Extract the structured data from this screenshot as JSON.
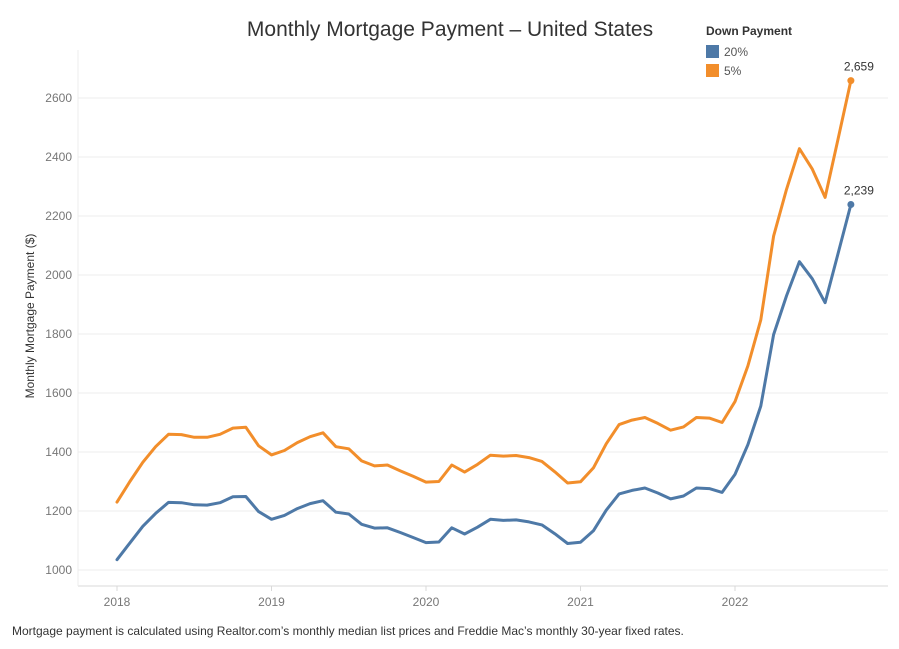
{
  "chart_data": {
    "type": "line",
    "title": "Monthly Mortgage Payment – United States",
    "xlabel": "",
    "ylabel": "Monthly Mortgage Payment ($)",
    "ylim": [
      960,
      2720
    ],
    "yticks": [
      1000,
      1200,
      1400,
      1600,
      1800,
      2000,
      2200,
      2400,
      2600
    ],
    "xticks": [
      "2018",
      "2019",
      "2020",
      "2021",
      "2022"
    ],
    "grid": true,
    "legend_title": "Down Payment",
    "legend_position": "top-right",
    "x": [
      "2018-01",
      "2018-02",
      "2018-03",
      "2018-04",
      "2018-05",
      "2018-06",
      "2018-07",
      "2018-08",
      "2018-09",
      "2018-10",
      "2018-11",
      "2018-12",
      "2019-01",
      "2019-02",
      "2019-03",
      "2019-04",
      "2019-05",
      "2019-06",
      "2019-07",
      "2019-08",
      "2019-09",
      "2019-10",
      "2019-11",
      "2019-12",
      "2020-01",
      "2020-02",
      "2020-03",
      "2020-04",
      "2020-05",
      "2020-06",
      "2020-07",
      "2020-08",
      "2020-09",
      "2020-10",
      "2020-11",
      "2020-12",
      "2021-01",
      "2021-02",
      "2021-03",
      "2021-04",
      "2021-05",
      "2021-06",
      "2021-07",
      "2021-08",
      "2021-09",
      "2021-10",
      "2021-11",
      "2021-12",
      "2022-01",
      "2022-02",
      "2022-03",
      "2022-04",
      "2022-05",
      "2022-06",
      "2022-07",
      "2022-08",
      "2022-09",
      "2022-10"
    ],
    "series": [
      {
        "name": "20%",
        "color": "#4e79a7",
        "values": [
          1035,
          1092,
          1148,
          1192,
          1229,
          1228,
          1221,
          1220,
          1228,
          1248,
          1249,
          1198,
          1172,
          1185,
          1208,
          1225,
          1235,
          1196,
          1190,
          1155,
          1142,
          1143,
          1127,
          1110,
          1093,
          1095,
          1143,
          1122,
          1145,
          1172,
          1168,
          1170,
          1163,
          1153,
          1123,
          1090,
          1094,
          1133,
          1203,
          1258,
          1270,
          1278,
          1261,
          1241,
          1251,
          1278,
          1276,
          1263,
          1324,
          1425,
          1556,
          1798,
          1929,
          2045,
          1987,
          1906,
          2072,
          2239
        ],
        "end_label": "2,239"
      },
      {
        "name": "5%",
        "color": "#f28e2b",
        "values": [
          1230,
          1300,
          1365,
          1418,
          1460,
          1459,
          1450,
          1450,
          1460,
          1481,
          1484,
          1421,
          1390,
          1405,
          1432,
          1452,
          1465,
          1418,
          1411,
          1370,
          1353,
          1356,
          1336,
          1318,
          1298,
          1300,
          1356,
          1332,
          1358,
          1389,
          1386,
          1388,
          1381,
          1368,
          1333,
          1295,
          1299,
          1346,
          1428,
          1493,
          1508,
          1517,
          1497,
          1474,
          1485,
          1517,
          1515,
          1500,
          1571,
          1692,
          1848,
          2132,
          2290,
          2428,
          2359,
          2263,
          2460,
          2659
        ],
        "end_label": "2,659"
      }
    ]
  },
  "footnote": "Mortgage payment is calculated using Realtor.com’s monthly median list prices and Freddie Mac’s monthly 30-year fixed rates."
}
